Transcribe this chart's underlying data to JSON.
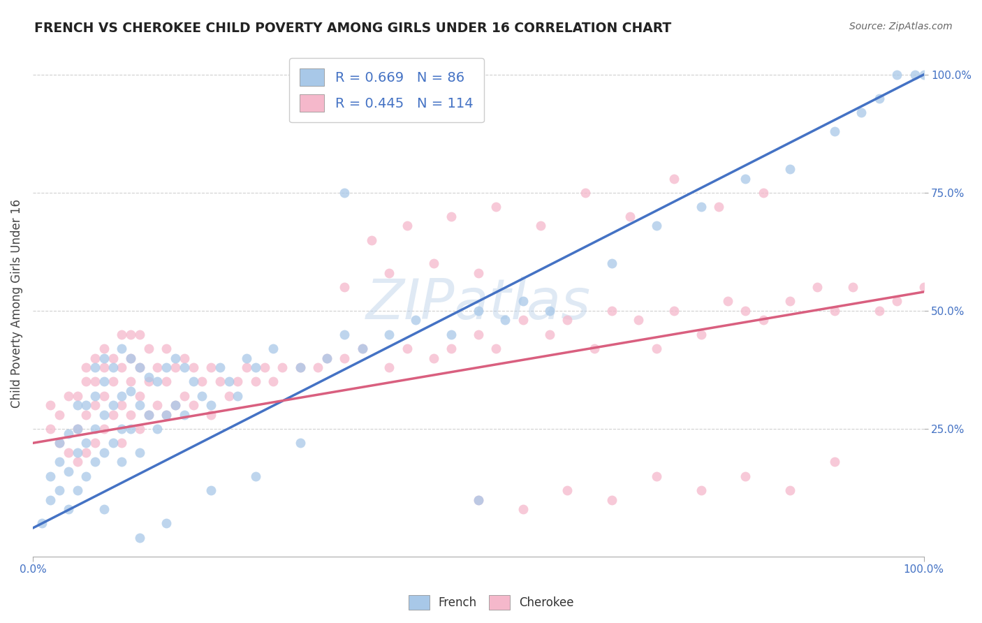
{
  "title": "FRENCH VS CHEROKEE CHILD POVERTY AMONG GIRLS UNDER 16 CORRELATION CHART",
  "source": "Source: ZipAtlas.com",
  "ylabel": "Child Poverty Among Girls Under 16",
  "xlim": [
    0.0,
    1.0
  ],
  "ylim": [
    -0.02,
    1.05
  ],
  "xtick_positions": [
    0.0,
    1.0
  ],
  "xtick_labels": [
    "0.0%",
    "100.0%"
  ],
  "ytick_positions": [
    0.25,
    0.5,
    0.75,
    1.0
  ],
  "ytick_labels": [
    "25.0%",
    "50.0%",
    "75.0%",
    "100.0%"
  ],
  "french_color": "#a8c8e8",
  "cherokee_color": "#f5b8cb",
  "french_line_color": "#4472c4",
  "cherokee_line_color": "#d95f7f",
  "french_R": 0.669,
  "french_N": 86,
  "cherokee_R": 0.445,
  "cherokee_N": 114,
  "watermark": "ZIPatlas",
  "background_color": "#ffffff",
  "grid_color": "#d0d0d0",
  "legend_text_color": "#4472c4",
  "french_line_x0": 0.0,
  "french_line_y0": 0.04,
  "french_line_x1": 1.0,
  "french_line_y1": 1.0,
  "cherokee_line_x0": 0.0,
  "cherokee_line_y0": 0.22,
  "cherokee_line_x1": 1.0,
  "cherokee_line_y1": 0.54,
  "french_scatter_x": [
    0.01,
    0.02,
    0.02,
    0.03,
    0.03,
    0.03,
    0.04,
    0.04,
    0.04,
    0.05,
    0.05,
    0.05,
    0.05,
    0.06,
    0.06,
    0.06,
    0.07,
    0.07,
    0.07,
    0.07,
    0.08,
    0.08,
    0.08,
    0.08,
    0.09,
    0.09,
    0.09,
    0.1,
    0.1,
    0.1,
    0.1,
    0.11,
    0.11,
    0.11,
    0.12,
    0.12,
    0.12,
    0.13,
    0.13,
    0.14,
    0.14,
    0.15,
    0.15,
    0.16,
    0.16,
    0.17,
    0.17,
    0.18,
    0.19,
    0.2,
    0.21,
    0.22,
    0.23,
    0.24,
    0.25,
    0.27,
    0.3,
    0.33,
    0.35,
    0.37,
    0.4,
    0.43,
    0.47,
    0.5,
    0.53,
    0.55,
    0.58,
    0.35,
    0.5,
    0.65,
    0.7,
    0.75,
    0.8,
    0.85,
    0.9,
    0.93,
    0.95,
    0.97,
    0.99,
    1.0,
    0.08,
    0.12,
    0.15,
    0.2,
    0.25,
    0.3
  ],
  "french_scatter_y": [
    0.05,
    0.1,
    0.15,
    0.12,
    0.18,
    0.22,
    0.08,
    0.16,
    0.24,
    0.12,
    0.2,
    0.25,
    0.3,
    0.15,
    0.22,
    0.3,
    0.18,
    0.25,
    0.32,
    0.38,
    0.2,
    0.28,
    0.35,
    0.4,
    0.22,
    0.3,
    0.38,
    0.18,
    0.25,
    0.32,
    0.42,
    0.25,
    0.33,
    0.4,
    0.2,
    0.3,
    0.38,
    0.28,
    0.36,
    0.25,
    0.35,
    0.28,
    0.38,
    0.3,
    0.4,
    0.28,
    0.38,
    0.35,
    0.32,
    0.3,
    0.38,
    0.35,
    0.32,
    0.4,
    0.38,
    0.42,
    0.38,
    0.4,
    0.45,
    0.42,
    0.45,
    0.48,
    0.45,
    0.5,
    0.48,
    0.52,
    0.5,
    0.75,
    0.1,
    0.6,
    0.68,
    0.72,
    0.78,
    0.8,
    0.88,
    0.92,
    0.95,
    1.0,
    1.0,
    1.0,
    0.08,
    0.02,
    0.05,
    0.12,
    0.15,
    0.22
  ],
  "cherokee_scatter_x": [
    0.02,
    0.02,
    0.03,
    0.03,
    0.04,
    0.04,
    0.05,
    0.05,
    0.05,
    0.06,
    0.06,
    0.06,
    0.06,
    0.07,
    0.07,
    0.07,
    0.07,
    0.08,
    0.08,
    0.08,
    0.08,
    0.09,
    0.09,
    0.09,
    0.1,
    0.1,
    0.1,
    0.1,
    0.11,
    0.11,
    0.11,
    0.11,
    0.12,
    0.12,
    0.12,
    0.12,
    0.13,
    0.13,
    0.13,
    0.14,
    0.14,
    0.15,
    0.15,
    0.15,
    0.16,
    0.16,
    0.17,
    0.17,
    0.18,
    0.18,
    0.19,
    0.2,
    0.2,
    0.21,
    0.22,
    0.23,
    0.24,
    0.25,
    0.26,
    0.27,
    0.28,
    0.3,
    0.32,
    0.33,
    0.35,
    0.37,
    0.4,
    0.42,
    0.45,
    0.47,
    0.5,
    0.52,
    0.55,
    0.58,
    0.6,
    0.63,
    0.65,
    0.68,
    0.7,
    0.72,
    0.75,
    0.78,
    0.8,
    0.82,
    0.85,
    0.88,
    0.9,
    0.92,
    0.95,
    0.97,
    1.0,
    0.5,
    0.55,
    0.6,
    0.65,
    0.7,
    0.75,
    0.8,
    0.85,
    0.9,
    0.38,
    0.42,
    0.47,
    0.52,
    0.57,
    0.62,
    0.67,
    0.72,
    0.77,
    0.82,
    0.35,
    0.4,
    0.45,
    0.5
  ],
  "cherokee_scatter_y": [
    0.25,
    0.3,
    0.22,
    0.28,
    0.2,
    0.32,
    0.18,
    0.25,
    0.32,
    0.2,
    0.28,
    0.35,
    0.38,
    0.22,
    0.3,
    0.35,
    0.4,
    0.25,
    0.32,
    0.38,
    0.42,
    0.28,
    0.35,
    0.4,
    0.22,
    0.3,
    0.38,
    0.45,
    0.28,
    0.35,
    0.4,
    0.45,
    0.25,
    0.32,
    0.38,
    0.45,
    0.28,
    0.35,
    0.42,
    0.3,
    0.38,
    0.28,
    0.35,
    0.42,
    0.3,
    0.38,
    0.32,
    0.4,
    0.3,
    0.38,
    0.35,
    0.28,
    0.38,
    0.35,
    0.32,
    0.35,
    0.38,
    0.35,
    0.38,
    0.35,
    0.38,
    0.38,
    0.38,
    0.4,
    0.4,
    0.42,
    0.38,
    0.42,
    0.4,
    0.42,
    0.45,
    0.42,
    0.48,
    0.45,
    0.48,
    0.42,
    0.5,
    0.48,
    0.42,
    0.5,
    0.45,
    0.52,
    0.5,
    0.48,
    0.52,
    0.55,
    0.5,
    0.55,
    0.5,
    0.52,
    0.55,
    0.1,
    0.08,
    0.12,
    0.1,
    0.15,
    0.12,
    0.15,
    0.12,
    0.18,
    0.65,
    0.68,
    0.7,
    0.72,
    0.68,
    0.75,
    0.7,
    0.78,
    0.72,
    0.75,
    0.55,
    0.58,
    0.6,
    0.58
  ]
}
